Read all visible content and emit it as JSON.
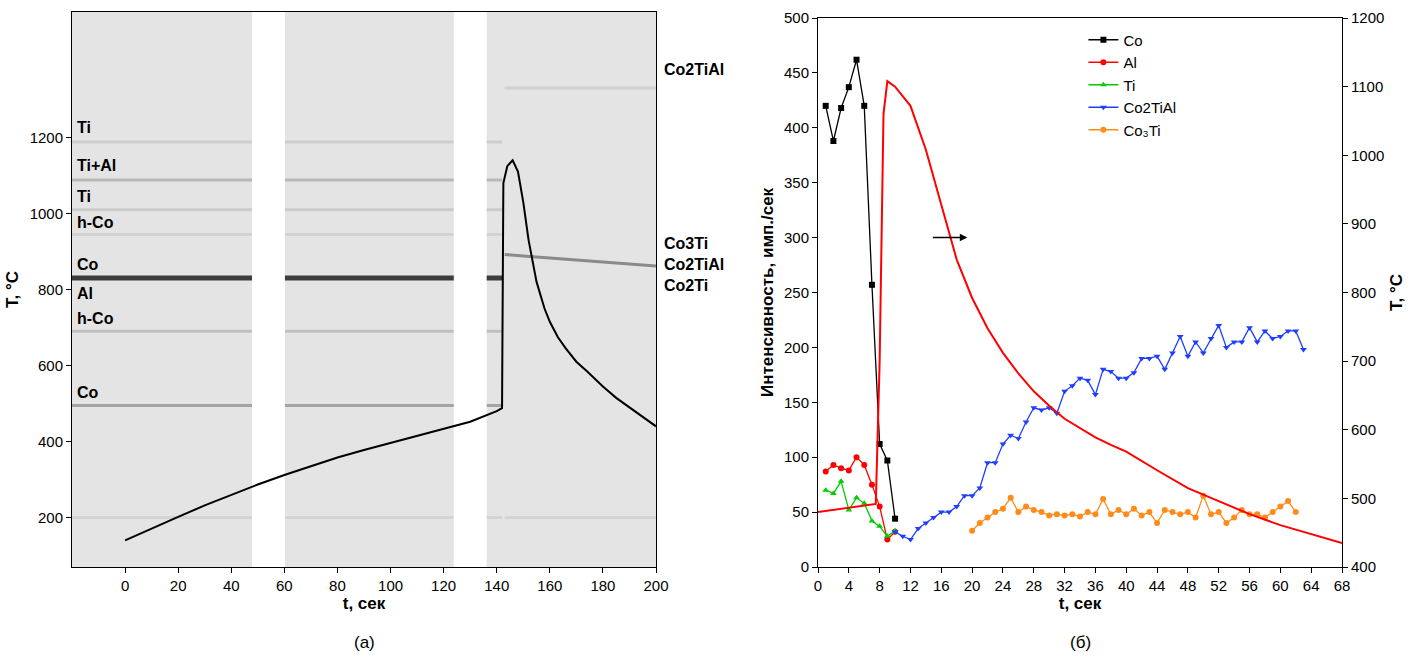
{
  "chart_data": [
    {
      "type": "line",
      "panel_label": "(a)",
      "x_label": "t, сек",
      "y_label": "T, °C",
      "xlim": [
        -20,
        200
      ],
      "xticks": [
        0,
        20,
        40,
        60,
        80,
        100,
        120,
        140,
        160,
        180,
        200
      ],
      "ylim": [
        70,
        1530
      ],
      "yticks": [
        200,
        400,
        600,
        800,
        1000,
        1200
      ],
      "grid": false,
      "series": [
        {
          "color": "#000000",
          "marker": "none",
          "line_style": "solid",
          "x": [
            0,
            10,
            20,
            30,
            40,
            50,
            60,
            70,
            80,
            90,
            100,
            110,
            120,
            130,
            140,
            142,
            142.5,
            144,
            146,
            148,
            150,
            152,
            155,
            158,
            160,
            163,
            166,
            170,
            174,
            177,
            180,
            185,
            190,
            195,
            200
          ],
          "values": [
            140,
            172,
            202,
            232,
            260,
            287,
            312,
            336,
            358,
            378,
            397,
            415,
            433,
            452,
            480,
            488,
            1080,
            1125,
            1140,
            1110,
            1030,
            930,
            820,
            750,
            715,
            675,
            645,
            610,
            585,
            565,
            545,
            515,
            490,
            465,
            440
          ]
        }
      ],
      "bands": [
        {
          "color": "#cdcdcd",
          "x": [
            -20,
            142
          ],
          "values": [
            1188,
            1188
          ]
        },
        {
          "color": "#b8b8b8",
          "x": [
            -20,
            142
          ],
          "values": [
            1088,
            1088
          ]
        },
        {
          "color": "#cbcbcb",
          "x": [
            -20,
            142
          ],
          "values": [
            1010,
            1010
          ]
        },
        {
          "color": "#d2d2d2",
          "x": [
            -20,
            142
          ],
          "values": [
            945,
            945
          ]
        },
        {
          "color": "#3c3c3c",
          "x": [
            -20,
            142
          ],
          "values": [
            830,
            830
          ]
        },
        {
          "color": "#c0c0c0",
          "x": [
            -20,
            142
          ],
          "values": [
            690,
            690
          ]
        },
        {
          "color": "#a4a4a4",
          "x": [
            -20,
            142
          ],
          "values": [
            495,
            495
          ]
        },
        {
          "color": "#d4d4d4",
          "x": [
            -20,
            142
          ],
          "values": [
            200,
            200
          ]
        },
        {
          "color": "#d0d0d0",
          "x": [
            143,
            200
          ],
          "values": [
            1330,
            1330
          ]
        },
        {
          "color": "#8a8a8a",
          "x": [
            143,
            150,
            200
          ],
          "values": [
            892,
            888,
            862
          ]
        },
        {
          "color": "#d4d4d4",
          "x": [
            143,
            200
          ],
          "values": [
            200,
            200
          ]
        }
      ],
      "gaps": [
        [
          48,
          60
        ],
        [
          124,
          136
        ]
      ],
      "annotations": [
        {
          "text": "Ti",
          "x": -19,
          "y": 1225,
          "side": "left"
        },
        {
          "text": "Ti+Al",
          "x": -19,
          "y": 1125,
          "side": "left"
        },
        {
          "text": "Ti",
          "x": -19,
          "y": 1045,
          "side": "left"
        },
        {
          "text": "h-Co",
          "x": -19,
          "y": 975,
          "side": "left"
        },
        {
          "text": "Co",
          "x": -19,
          "y": 865,
          "side": "left"
        },
        {
          "text": "Al",
          "x": -19,
          "y": 790,
          "side": "left"
        },
        {
          "text": "h-Co",
          "x": -19,
          "y": 725,
          "side": "left"
        },
        {
          "text": "Co",
          "x": -19,
          "y": 530,
          "side": "left"
        },
        {
          "text": "Co2TiAl",
          "x": 200,
          "y": 1380,
          "side": "right"
        },
        {
          "text": "Co3Ti",
          "x": 200,
          "y": 920,
          "side": "right"
        },
        {
          "text": "Co2TiAl",
          "x": 200,
          "y": 865,
          "side": "right"
        },
        {
          "text": "Co2Ti",
          "x": 200,
          "y": 810,
          "side": "right"
        }
      ]
    },
    {
      "type": "line",
      "panel_label": "(б)",
      "x_label": "t, сек",
      "y_label": "Интенсивность, имп./сек",
      "y2_label": "T, °C",
      "xlim": [
        0,
        68
      ],
      "xticks": [
        0,
        4,
        8,
        12,
        16,
        20,
        24,
        28,
        32,
        36,
        40,
        44,
        48,
        52,
        56,
        60,
        64,
        68
      ],
      "ylim": [
        0,
        500
      ],
      "yticks": [
        0,
        50,
        100,
        150,
        200,
        250,
        300,
        350,
        400,
        450,
        500
      ],
      "y2lim": [
        400,
        1200
      ],
      "y2ticks": [
        400,
        500,
        600,
        700,
        800,
        900,
        1000,
        1100,
        1200
      ],
      "grid": false,
      "legend": "top",
      "series": [
        {
          "name": "Co",
          "color": "#000000",
          "marker": "square",
          "line_style": "solid",
          "x": [
            1,
            2,
            3,
            4,
            5,
            6,
            7,
            8,
            9,
            10
          ],
          "values": [
            420,
            388,
            418,
            437,
            462,
            420,
            257,
            112,
            97,
            44
          ]
        },
        {
          "name": "Al",
          "color": "#ff0000",
          "marker": "circle",
          "line_style": "solid",
          "x": [
            1,
            2,
            3,
            4,
            5,
            6,
            7,
            8,
            9,
            10
          ],
          "values": [
            87,
            93,
            90,
            88,
            100,
            93,
            75,
            55,
            25,
            32
          ]
        },
        {
          "name": "Ti",
          "color": "#00cc00",
          "marker": "triangle-up",
          "line_style": "solid",
          "x": [
            1,
            2,
            3,
            4,
            5,
            6,
            7,
            8,
            9,
            10
          ],
          "values": [
            70,
            67,
            78,
            52,
            63,
            58,
            42,
            37,
            28,
            33
          ]
        },
        {
          "name": "Co2TiAl",
          "color": "#1f3fff",
          "marker": "triangle-down",
          "line_style": "solid",
          "x": [
            10,
            11,
            12,
            13,
            14,
            15,
            16,
            17,
            18,
            19,
            20,
            21,
            22,
            23,
            24,
            25,
            26,
            27,
            28,
            29,
            30,
            31,
            32,
            33,
            34,
            35,
            36,
            37,
            38,
            39,
            40,
            41,
            42,
            43,
            44,
            45,
            46,
            47,
            48,
            49,
            50,
            51,
            52,
            53,
            54,
            55,
            56,
            57,
            58,
            59,
            60,
            61,
            62,
            63
          ],
          "values": [
            32,
            28,
            25,
            35,
            40,
            45,
            50,
            50,
            55,
            65,
            65,
            72,
            95,
            95,
            112,
            120,
            117,
            132,
            145,
            143,
            145,
            140,
            160,
            165,
            172,
            170,
            157,
            180,
            178,
            172,
            172,
            177,
            190,
            190,
            192,
            180,
            195,
            210,
            192,
            205,
            195,
            208,
            220,
            200,
            205,
            205,
            218,
            205,
            215,
            208,
            210,
            215,
            215,
            198
          ]
        },
        {
          "name": "Co₃Ti",
          "color": "#ff8c1a",
          "marker": "circle",
          "line_style": "solid",
          "x": [
            20,
            21,
            22,
            23,
            24,
            25,
            26,
            27,
            28,
            29,
            30,
            31,
            32,
            33,
            34,
            35,
            36,
            37,
            38,
            39,
            40,
            41,
            42,
            43,
            44,
            45,
            46,
            47,
            48,
            49,
            50,
            51,
            52,
            53,
            54,
            55,
            56,
            57,
            58,
            59,
            60,
            61,
            62
          ],
          "values": [
            33,
            40,
            45,
            50,
            53,
            63,
            50,
            55,
            52,
            50,
            47,
            48,
            47,
            48,
            46,
            50,
            48,
            62,
            48,
            52,
            48,
            53,
            47,
            50,
            40,
            52,
            50,
            48,
            50,
            45,
            65,
            48,
            50,
            40,
            45,
            52,
            48,
            48,
            45,
            50,
            55,
            60,
            50
          ]
        },
        {
          "color": "#ff0000",
          "marker": "none",
          "line_style": "solid",
          "axis": "y2",
          "x": [
            0,
            2,
            4,
            6,
            7.5,
            8,
            8.5,
            9,
            10,
            12,
            14,
            16,
            18,
            20,
            22,
            24,
            26,
            28,
            30,
            32,
            34,
            36,
            38,
            40,
            44,
            48,
            52,
            56,
            60,
            64,
            68
          ],
          "values": [
            480,
            483,
            486,
            489,
            492,
            700,
            1060,
            1108,
            1100,
            1072,
            1008,
            928,
            848,
            792,
            748,
            712,
            682,
            656,
            635,
            616,
            602,
            589,
            578,
            568,
            541,
            515,
            496,
            477,
            461,
            448,
            435
          ]
        }
      ]
    }
  ]
}
